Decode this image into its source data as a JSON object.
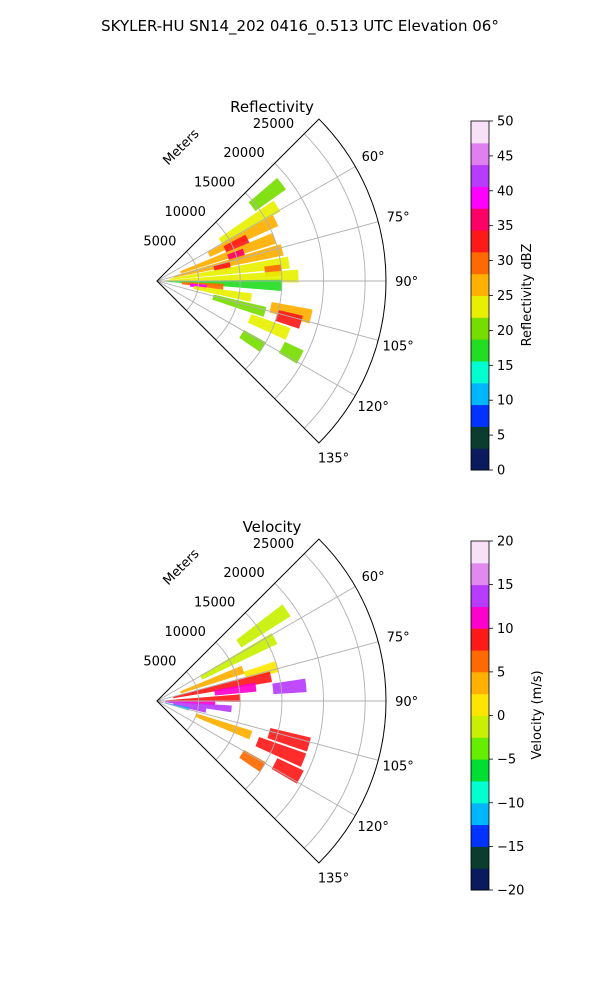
{
  "figure": {
    "suptitle": "SKYLER-HU  SN14_202  0416_0.513 UTC Elevation 06°"
  },
  "chart_data": [
    {
      "type": "heatmap",
      "title": "Reflectivity",
      "projection": "polar-sector",
      "radial_label": "Meters",
      "radial_ticks": [
        "5000",
        "10000",
        "15000",
        "20000",
        "25000"
      ],
      "radial_range": [
        0,
        27500
      ],
      "angular_ticks": [
        "60°",
        "75°",
        "90°",
        "105°",
        "120°",
        "135°"
      ],
      "angular_range_deg": [
        45,
        135
      ],
      "grid": true,
      "colorbar": {
        "label": "Reflectivity dBZ",
        "range": [
          0,
          50
        ],
        "ticks": [
          "0",
          "5",
          "10",
          "15",
          "20",
          "25",
          "30",
          "35",
          "40",
          "45",
          "50"
        ]
      },
      "cells": [
        {
          "az": 52,
          "r0": 14500,
          "r1": 19000,
          "value": 20
        },
        {
          "az": 58,
          "r0": 9000,
          "r1": 17000,
          "value": 24
        },
        {
          "az": 63,
          "r0": 7000,
          "r1": 16000,
          "value": 27
        },
        {
          "az": 65,
          "r0": 9000,
          "r1": 12000,
          "value": 34
        },
        {
          "az": 70,
          "r0": 3000,
          "r1": 15000,
          "value": 28
        },
        {
          "az": 72,
          "r0": 9000,
          "r1": 11000,
          "value": 36
        },
        {
          "az": 76,
          "r0": 2000,
          "r1": 15500,
          "value": 26
        },
        {
          "az": 78,
          "r0": 7000,
          "r1": 9000,
          "value": 33
        },
        {
          "az": 82,
          "r0": 1500,
          "r1": 16000,
          "value": 24
        },
        {
          "az": 85,
          "r0": 13000,
          "r1": 15000,
          "value": 30
        },
        {
          "az": 88,
          "r0": 1000,
          "r1": 17000,
          "value": 22
        },
        {
          "az": 92,
          "r0": 1000,
          "r1": 15000,
          "value": 18
        },
        {
          "az": 95,
          "r0": 3000,
          "r1": 8000,
          "value": 30
        },
        {
          "az": 97,
          "r0": 4000,
          "r1": 6000,
          "value": 40
        },
        {
          "az": 100,
          "r0": 4500,
          "r1": 11500,
          "value": 22
        },
        {
          "az": 103,
          "r0": 14000,
          "r1": 19000,
          "value": 26
        },
        {
          "az": 106,
          "r0": 15000,
          "r1": 18000,
          "value": 34
        },
        {
          "az": 106,
          "r0": 7000,
          "r1": 13500,
          "value": 19
        },
        {
          "az": 112,
          "r0": 12000,
          "r1": 17000,
          "value": 23
        },
        {
          "az": 118,
          "r0": 17000,
          "r1": 19500,
          "value": 21
        },
        {
          "az": 122,
          "r0": 12000,
          "r1": 15000,
          "value": 20
        }
      ]
    },
    {
      "type": "heatmap",
      "title": "Velocity",
      "projection": "polar-sector",
      "radial_label": "Meters",
      "radial_ticks": [
        "5000",
        "10000",
        "15000",
        "20000",
        "25000"
      ],
      "radial_range": [
        0,
        27500
      ],
      "angular_ticks": [
        "60°",
        "75°",
        "90°",
        "105°",
        "120°",
        "135°"
      ],
      "angular_range_deg": [
        45,
        135
      ],
      "grid": true,
      "colorbar": {
        "label": "Velocity (m/s)",
        "range": [
          -20,
          20
        ],
        "ticks": [
          "−20",
          "−15",
          "−10",
          "−5",
          "0",
          "5",
          "10",
          "15",
          "20"
        ]
      },
      "cells": [
        {
          "az": 55,
          "r0": 12000,
          "r1": 19000,
          "value": -2
        },
        {
          "az": 62,
          "r0": 6000,
          "r1": 16000,
          "value": -1
        },
        {
          "az": 70,
          "r0": 3000,
          "r1": 11000,
          "value": 3
        },
        {
          "az": 74,
          "r0": 11000,
          "r1": 15000,
          "value": 1
        },
        {
          "az": 78,
          "r0": 2000,
          "r1": 14000,
          "value": 8
        },
        {
          "az": 82,
          "r0": 7000,
          "r1": 12000,
          "value": 11
        },
        {
          "az": 84,
          "r0": 14000,
          "r1": 18000,
          "value": 14
        },
        {
          "az": 88,
          "r0": 1000,
          "r1": 10000,
          "value": 9
        },
        {
          "az": 92,
          "r0": 1000,
          "r1": 7000,
          "value": 10
        },
        {
          "az": 96,
          "r0": 1000,
          "r1": 9000,
          "value": 13
        },
        {
          "az": 101,
          "r0": 2000,
          "r1": 6000,
          "value": 14
        },
        {
          "az": 104,
          "r0": 1000,
          "r1": 4000,
          "value": -11
        },
        {
          "az": 106,
          "r0": 14000,
          "r1": 19000,
          "value": 9
        },
        {
          "az": 112,
          "r0": 13000,
          "r1": 19000,
          "value": 8
        },
        {
          "az": 110,
          "r0": 5000,
          "r1": 12000,
          "value": 4
        },
        {
          "az": 118,
          "r0": 16000,
          "r1": 19500,
          "value": 9
        },
        {
          "az": 122,
          "r0": 12000,
          "r1": 15000,
          "value": 5
        }
      ]
    }
  ]
}
